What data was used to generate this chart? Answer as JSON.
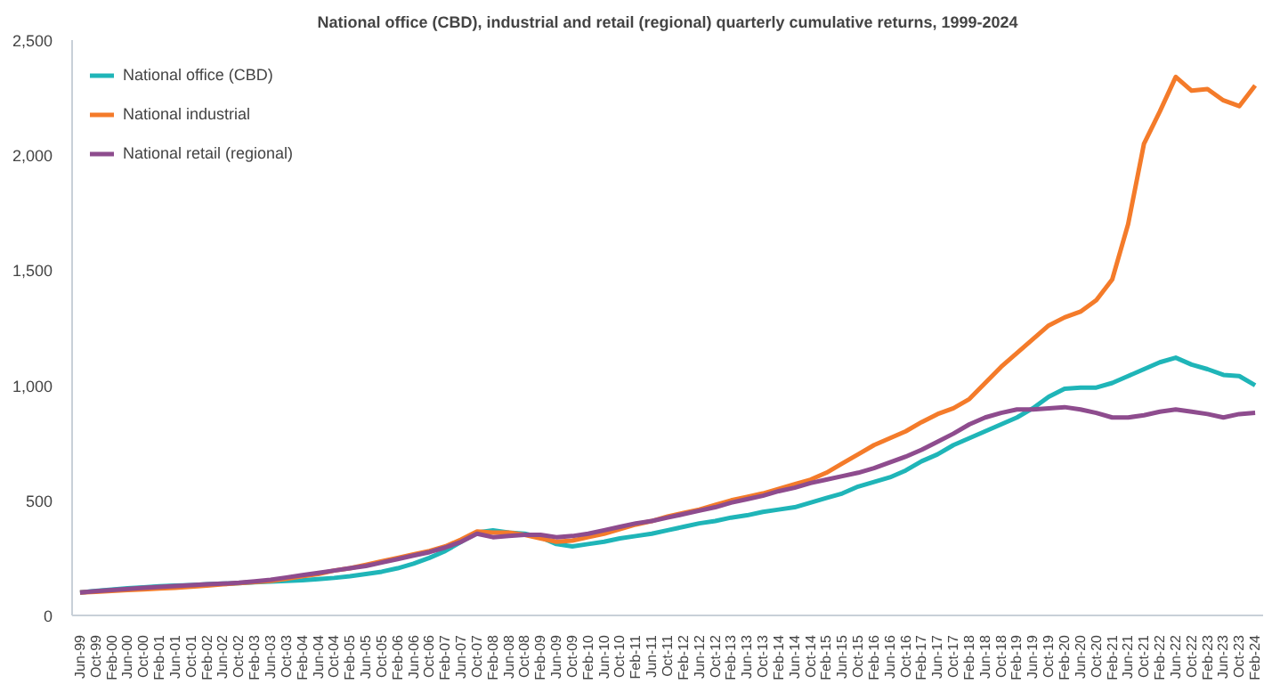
{
  "chart_data": {
    "type": "line",
    "title": "National office (CBD), industrial and retail (regional) quarterly cumulative returns, 1999-2024",
    "categories": [
      "Jun-99",
      "Oct-99",
      "Feb-00",
      "Jun-00",
      "Oct-00",
      "Feb-01",
      "Jun-01",
      "Oct-01",
      "Feb-02",
      "Jun-02",
      "Oct-02",
      "Feb-03",
      "Jun-03",
      "Oct-03",
      "Feb-04",
      "Jun-04",
      "Oct-04",
      "Feb-05",
      "Jun-05",
      "Oct-05",
      "Feb-06",
      "Jun-06",
      "Oct-06",
      "Feb-07",
      "Jun-07",
      "Oct-07",
      "Feb-08",
      "Jun-08",
      "Oct-08",
      "Feb-09",
      "Jun-09",
      "Oct-09",
      "Feb-10",
      "Jun-10",
      "Oct-10",
      "Feb-11",
      "Jun-11",
      "Oct-11",
      "Feb-12",
      "Jun-12",
      "Oct-12",
      "Feb-13",
      "Jun-13",
      "Oct-13",
      "Feb-14",
      "Jun-14",
      "Oct-14",
      "Feb-15",
      "Jun-15",
      "Oct-15",
      "Feb-16",
      "Jun-16",
      "Oct-16",
      "Feb-17",
      "Jun-17",
      "Oct-17",
      "Feb-18",
      "Jun-18",
      "Oct-18",
      "Feb-19",
      "Jun-19",
      "Oct-19",
      "Feb-20",
      "Jun-20",
      "Oct-20",
      "Feb-21",
      "Jun-21",
      "Oct-21",
      "Feb-22",
      "Jun-22",
      "Oct-22",
      "Feb-23",
      "Jun-23",
      "Oct-23",
      "Feb-24"
    ],
    "series": [
      {
        "name": "National office (CBD)",
        "color": "#1fb5b8",
        "values": [
          100,
          106,
          112,
          118,
          122,
          127,
          130,
          132,
          135,
          138,
          140,
          144,
          147,
          150,
          153,
          158,
          163,
          170,
          180,
          190,
          205,
          225,
          250,
          280,
          320,
          360,
          370,
          360,
          355,
          340,
          310,
          300,
          310,
          320,
          335,
          345,
          355,
          370,
          385,
          400,
          410,
          425,
          435,
          450,
          460,
          470,
          490,
          510,
          530,
          560,
          580,
          600,
          630,
          670,
          700,
          740,
          770,
          800,
          830,
          860,
          900,
          950,
          985,
          990,
          990,
          1010,
          1040,
          1070,
          1100,
          1120,
          1090,
          1070,
          1045,
          1040,
          1000
        ]
      },
      {
        "name": "National industrial",
        "color": "#f47b2a",
        "values": [
          100,
          103,
          106,
          110,
          113,
          117,
          120,
          125,
          130,
          135,
          140,
          145,
          150,
          160,
          170,
          180,
          195,
          205,
          220,
          235,
          250,
          265,
          280,
          300,
          330,
          365,
          360,
          360,
          350,
          335,
          320,
          325,
          340,
          355,
          375,
          395,
          410,
          430,
          445,
          460,
          480,
          500,
          515,
          530,
          550,
          570,
          590,
          620,
          660,
          700,
          740,
          770,
          800,
          840,
          875,
          900,
          940,
          1010,
          1080,
          1140,
          1200,
          1260,
          1295,
          1320,
          1370,
          1460,
          1700,
          2050,
          2190,
          2340,
          2280,
          2287,
          2238,
          2213,
          2303
        ]
      },
      {
        "name": "National retail (regional)",
        "color": "#8e4c8e",
        "values": [
          100,
          105,
          110,
          115,
          120,
          124,
          128,
          132,
          135,
          138,
          142,
          148,
          155,
          165,
          175,
          185,
          195,
          205,
          215,
          230,
          245,
          260,
          275,
          295,
          320,
          355,
          340,
          345,
          350,
          350,
          340,
          345,
          355,
          370,
          385,
          400,
          410,
          425,
          440,
          455,
          470,
          490,
          505,
          520,
          540,
          555,
          575,
          590,
          605,
          620,
          640,
          665,
          690,
          720,
          755,
          790,
          830,
          860,
          880,
          895,
          895,
          900,
          905,
          895,
          880,
          860,
          860,
          870,
          885,
          895,
          885,
          875,
          860,
          875,
          880
        ]
      }
    ],
    "ylim": [
      0,
      2500
    ],
    "yticks": [
      0,
      500,
      {
        "value": 1000,
        "label": "1,000"
      },
      {
        "value": 1500,
        "label": "1,500"
      },
      {
        "value": 2000,
        "label": "2,000"
      },
      {
        "value": 2500,
        "label": "2,500"
      }
    ],
    "legend": "top left",
    "grid": false
  }
}
